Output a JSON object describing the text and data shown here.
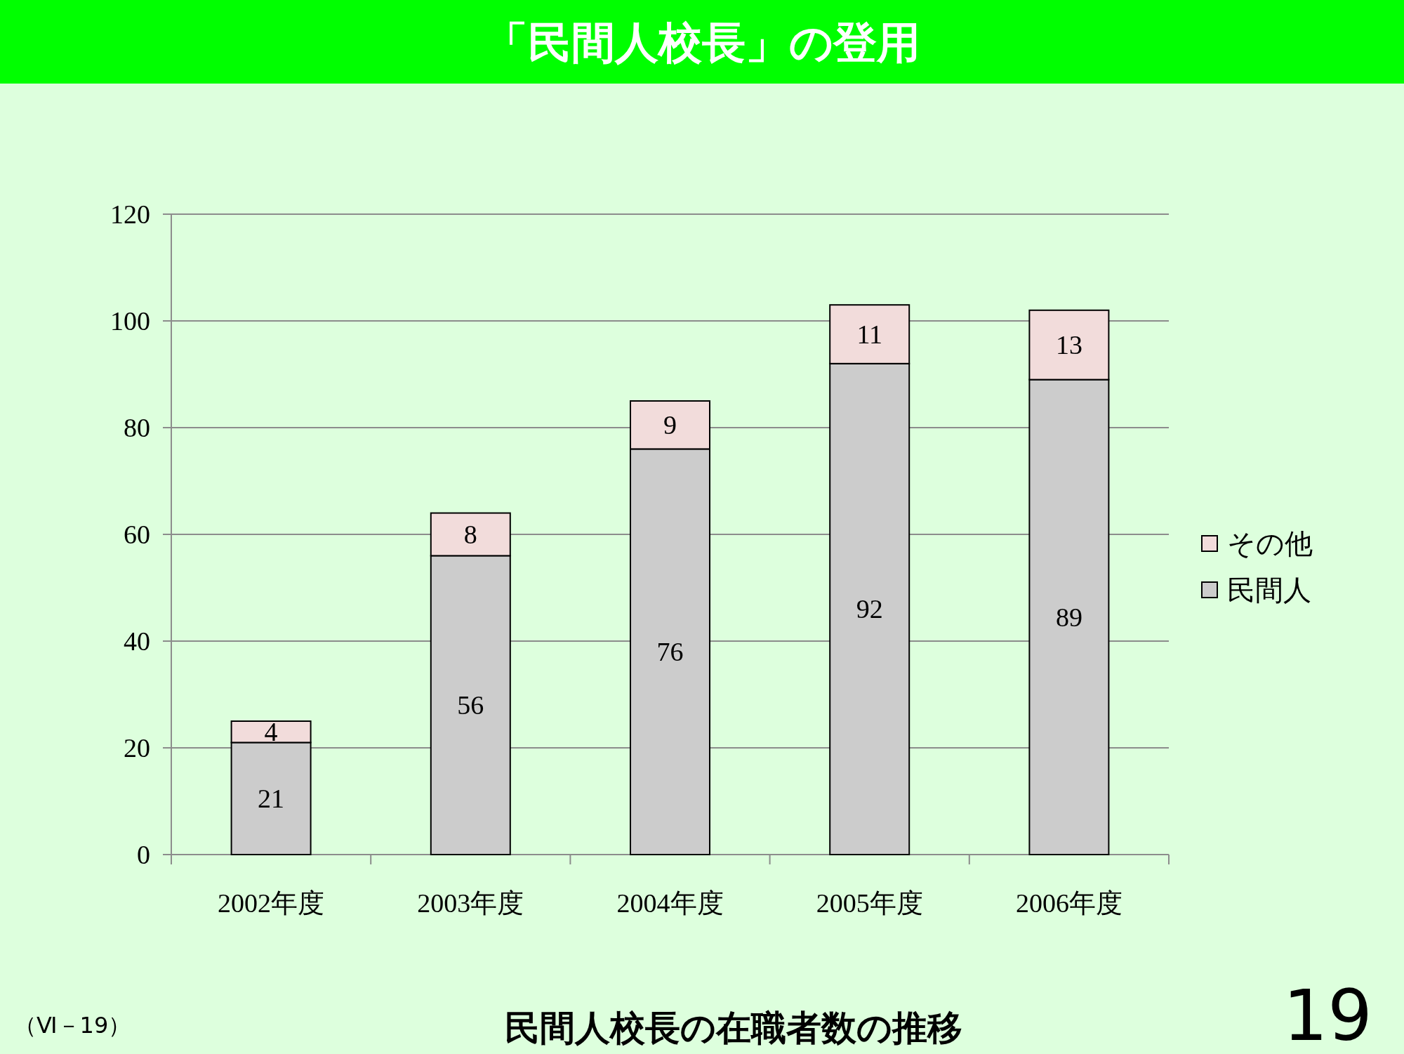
{
  "chart_data": {
    "type": "bar",
    "title": "「民間人校長」の登用",
    "categories": [
      "2002年度",
      "2003年度",
      "2004年度",
      "2005年度",
      "2006年度"
    ],
    "series": [
      {
        "name": "民間人",
        "color": "#cccccc",
        "values": [
          21,
          56,
          76,
          92,
          89
        ]
      },
      {
        "name": "その他",
        "color": "#f2dcdb",
        "values": [
          4,
          8,
          9,
          11,
          13
        ]
      }
    ],
    "stacked": true,
    "data_labels": true,
    "ylim": [
      0,
      120
    ],
    "yticks": [
      0,
      20,
      40,
      60,
      80,
      100,
      120
    ],
    "grid": "y",
    "legend": "right",
    "annotations": [
      "民間人校長の在職者数の推移",
      "（Ⅵ－19）",
      "19"
    ]
  }
}
